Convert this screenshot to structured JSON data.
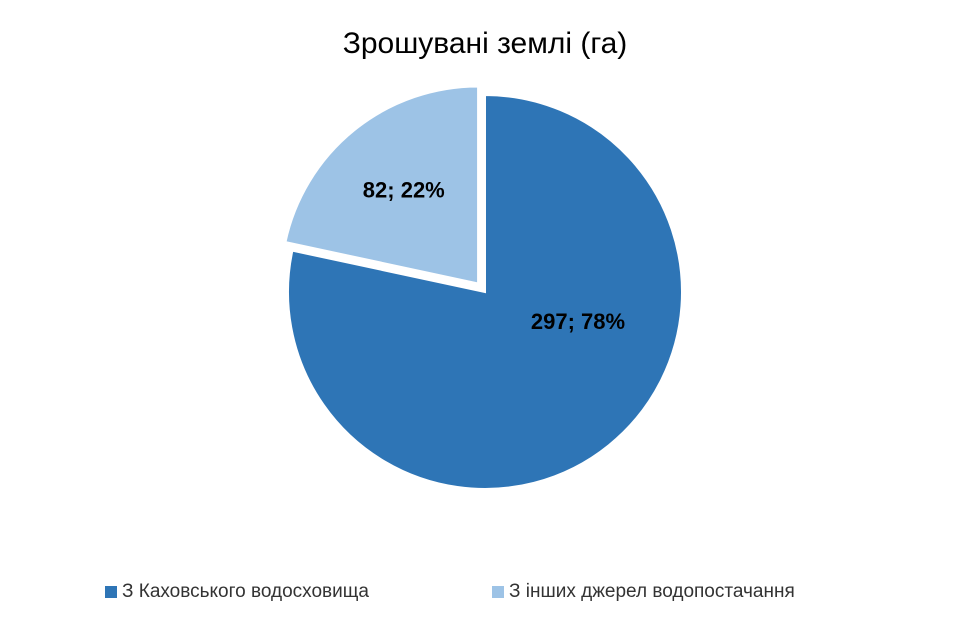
{
  "chart_data": {
    "type": "pie",
    "title": "Зрошувані землі (га)",
    "categories": [
      "З Каховського водосховища",
      "З інших джерел водопостачання"
    ],
    "values": [
      297,
      82
    ],
    "value_labels": [
      "297; 78%",
      "82; 22%"
    ],
    "colors": [
      "#2e75b6",
      "#9dc3e6"
    ],
    "legend": "bottom"
  }
}
